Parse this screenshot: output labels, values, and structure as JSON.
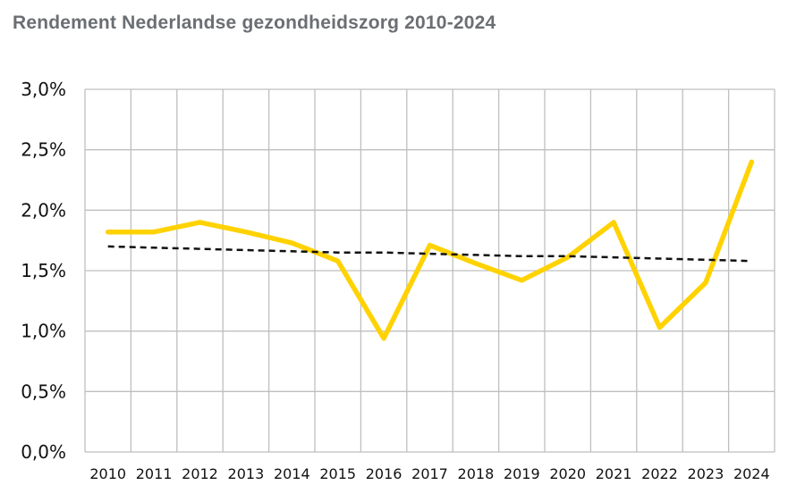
{
  "chart_data": {
    "type": "line",
    "title": "Rendement Nederlandse gezondheidszorg 2010-2024",
    "categories": [
      "2010",
      "2011",
      "2012",
      "2013",
      "2014",
      "2015",
      "2016",
      "2017",
      "2018",
      "2019",
      "2020",
      "2021",
      "2022",
      "2023",
      "2024"
    ],
    "y_tick_labels": [
      "0,0%",
      "0,5%",
      "1,0%",
      "1,5%",
      "2,0%",
      "2,5%",
      "3,0%"
    ],
    "y_ticks": [
      0,
      0.5,
      1.0,
      1.5,
      2.0,
      2.5,
      3.0
    ],
    "ylim": [
      0,
      3.0
    ],
    "grid": true,
    "legend": "none",
    "series": [
      {
        "values": [
          1.82,
          1.82,
          1.9,
          1.82,
          1.73,
          1.58,
          0.94,
          1.71,
          1.56,
          1.42,
          1.61,
          1.9,
          1.03,
          1.4,
          2.4
        ],
        "color": "#ffd200",
        "style": "solid"
      },
      {
        "values": [
          1.7,
          1.69,
          1.68,
          1.67,
          1.66,
          1.65,
          1.65,
          1.64,
          1.63,
          1.62,
          1.62,
          1.61,
          1.6,
          1.59,
          1.58
        ],
        "color": "#111111",
        "style": "dashed"
      }
    ],
    "colors": {
      "grid": "#bfbfbf",
      "main_line": "#ffd200",
      "trend_line": "#111111",
      "title": "#6b6e72"
    }
  }
}
